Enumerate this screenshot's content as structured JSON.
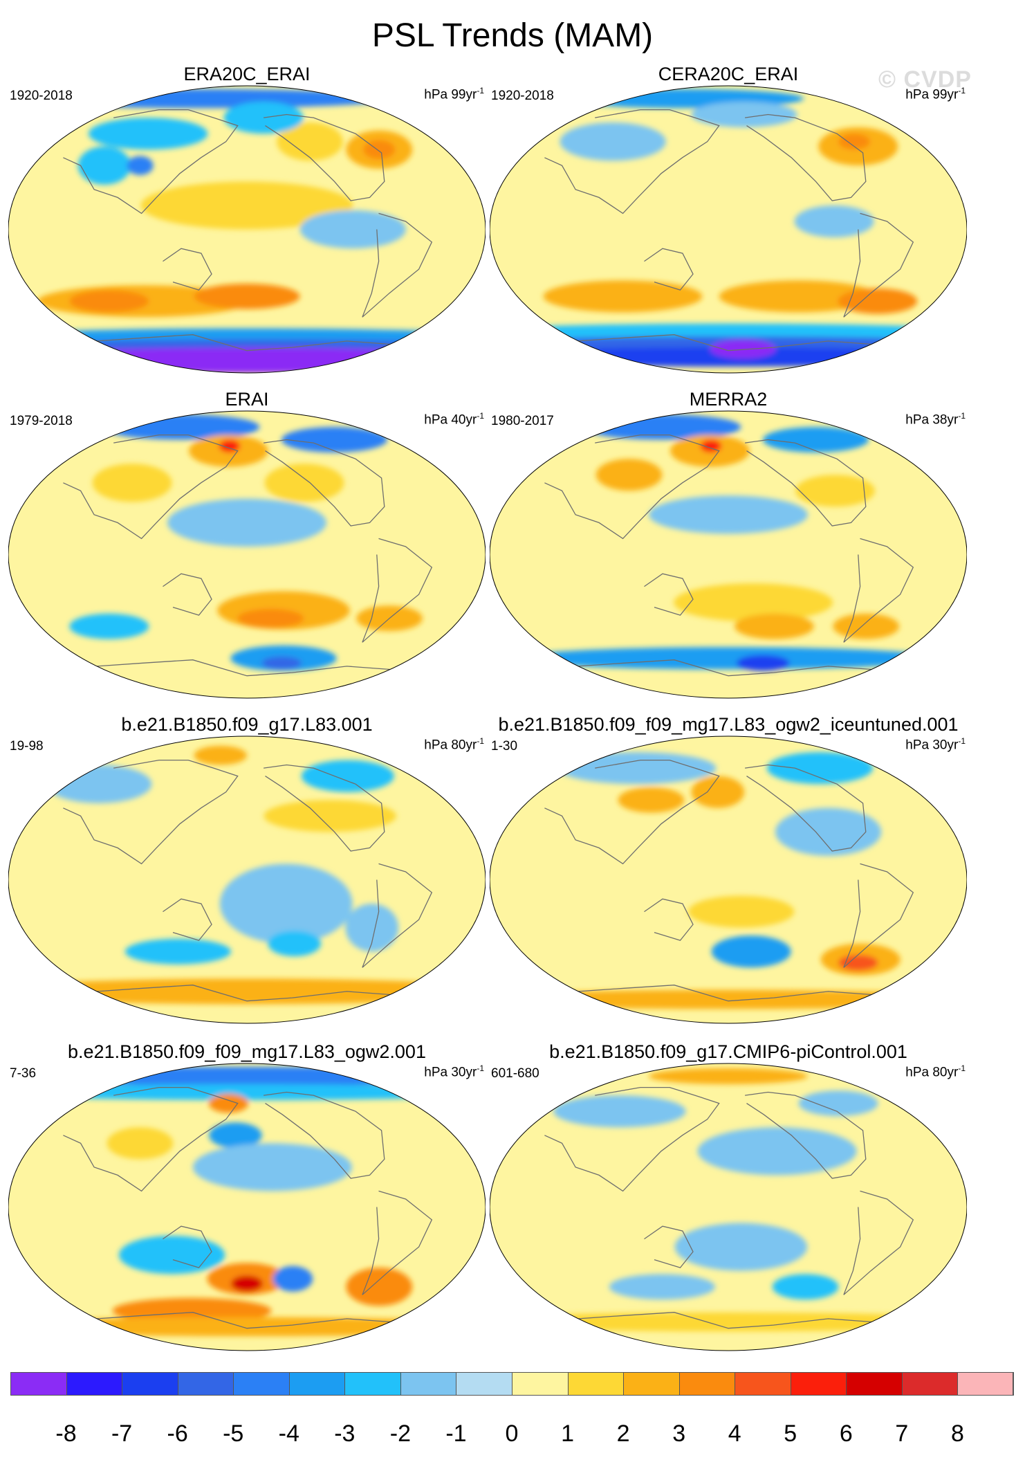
{
  "figure": {
    "title": "PSL Trends (MAM)",
    "watermark": "© CVDP"
  },
  "chart_data": {
    "type": "heatmap",
    "projection": "Robinson-like global map, Pacific-centered",
    "variable": "Sea level pressure trends, March-April-May",
    "panels": [
      {
        "title": "ERA20C_ERAI",
        "period": "1920-2018",
        "units": "hPa 99yr",
        "units_exp": "-1",
        "blobs": [
          {
            "lon": 90,
            "lat": 82,
            "rx": 150,
            "ry": 6,
            "v": -4
          },
          {
            "lon": 80,
            "lat": 60,
            "rx": 45,
            "ry": 10,
            "v": -2
          },
          {
            "lon": 60,
            "lat": 40,
            "rx": 20,
            "ry": 12,
            "v": -2
          },
          {
            "lon": 90,
            "lat": 40,
            "rx": 10,
            "ry": 6,
            "v": -4
          },
          {
            "lon": 240,
            "lat": 55,
            "rx": 25,
            "ry": 12,
            "v": 1
          },
          {
            "lon": 300,
            "lat": 50,
            "rx": 25,
            "ry": 12,
            "v": 2
          },
          {
            "lon": 300,
            "lat": 50,
            "rx": 12,
            "ry": 6,
            "v": 3
          },
          {
            "lon": 200,
            "lat": 70,
            "rx": 30,
            "ry": 10,
            "v": -2
          },
          {
            "lon": 180,
            "lat": 15,
            "rx": 80,
            "ry": 15,
            "v": 1
          },
          {
            "lon": 260,
            "lat": 0,
            "rx": 40,
            "ry": 12,
            "v": -1
          },
          {
            "lon": 90,
            "lat": -45,
            "rx": 80,
            "ry": 10,
            "v": 2
          },
          {
            "lon": 60,
            "lat": -45,
            "rx": 30,
            "ry": 7,
            "v": 3
          },
          {
            "lon": 180,
            "lat": -42,
            "rx": 40,
            "ry": 8,
            "v": 3
          },
          {
            "lon": 180,
            "lat": -68,
            "rx": 200,
            "ry": 6,
            "v": -3
          },
          {
            "lon": 180,
            "lat": -73,
            "rx": 200,
            "ry": 4,
            "v": -5
          },
          {
            "lon": 180,
            "lat": -82,
            "rx": 200,
            "ry": 8,
            "v": -8
          }
        ]
      },
      {
        "title": "CERA20C_ERAI",
        "period": "1920-2018",
        "units": "hPa 99yr",
        "units_exp": "-1",
        "blobs": [
          {
            "lon": 100,
            "lat": 82,
            "rx": 90,
            "ry": 6,
            "v": -3
          },
          {
            "lon": 70,
            "lat": 55,
            "rx": 40,
            "ry": 12,
            "v": -1
          },
          {
            "lon": 300,
            "lat": 52,
            "rx": 30,
            "ry": 12,
            "v": 2
          },
          {
            "lon": 300,
            "lat": 55,
            "rx": 12,
            "ry": 5,
            "v": 3
          },
          {
            "lon": 200,
            "lat": 72,
            "rx": 40,
            "ry": 8,
            "v": -1
          },
          {
            "lon": 260,
            "lat": 5,
            "rx": 30,
            "ry": 10,
            "v": -1
          },
          {
            "lon": 90,
            "lat": -42,
            "rx": 60,
            "ry": 10,
            "v": 2
          },
          {
            "lon": 240,
            "lat": -42,
            "rx": 60,
            "ry": 10,
            "v": 2
          },
          {
            "lon": 310,
            "lat": -45,
            "rx": 30,
            "ry": 8,
            "v": 3
          },
          {
            "lon": 180,
            "lat": -65,
            "rx": 200,
            "ry": 6,
            "v": -2
          },
          {
            "lon": 180,
            "lat": -72,
            "rx": 200,
            "ry": 5,
            "v": -5
          },
          {
            "lon": 180,
            "lat": -80,
            "rx": 200,
            "ry": 6,
            "v": -6
          },
          {
            "lon": 200,
            "lat": -75,
            "rx": 25,
            "ry": 6,
            "v": -8
          }
        ]
      },
      {
        "title": "ERAI",
        "period": "1979-2018",
        "units": "hPa 40yr",
        "units_exp": "-1",
        "blobs": [
          {
            "lon": 70,
            "lat": 80,
            "rx": 60,
            "ry": 8,
            "v": -4
          },
          {
            "lon": 290,
            "lat": 72,
            "rx": 40,
            "ry": 8,
            "v": -4
          },
          {
            "lon": 160,
            "lat": 65,
            "rx": 30,
            "ry": 10,
            "v": 2
          },
          {
            "lon": 160,
            "lat": 68,
            "rx": 8,
            "ry": 4,
            "v": 5
          },
          {
            "lon": 80,
            "lat": 45,
            "rx": 30,
            "ry": 12,
            "v": 1
          },
          {
            "lon": 230,
            "lat": 45,
            "rx": 30,
            "ry": 12,
            "v": 1
          },
          {
            "lon": 180,
            "lat": 20,
            "rx": 60,
            "ry": 15,
            "v": -1
          },
          {
            "lon": 210,
            "lat": -35,
            "rx": 50,
            "ry": 12,
            "v": 2
          },
          {
            "lon": 200,
            "lat": -40,
            "rx": 25,
            "ry": 6,
            "v": 3
          },
          {
            "lon": 300,
            "lat": -40,
            "rx": 25,
            "ry": 8,
            "v": 2
          },
          {
            "lon": 60,
            "lat": -45,
            "rx": 30,
            "ry": 8,
            "v": -2
          },
          {
            "lon": 220,
            "lat": -65,
            "rx": 40,
            "ry": 8,
            "v": -3
          },
          {
            "lon": 220,
            "lat": -68,
            "rx": 15,
            "ry": 4,
            "v": -5
          }
        ]
      },
      {
        "title": "MERRA2",
        "period": "1980-2017",
        "units": "hPa 38yr",
        "units_exp": "-1",
        "blobs": [
          {
            "lon": 70,
            "lat": 80,
            "rx": 60,
            "ry": 8,
            "v": -4
          },
          {
            "lon": 290,
            "lat": 72,
            "rx": 40,
            "ry": 8,
            "v": -3
          },
          {
            "lon": 160,
            "lat": 65,
            "rx": 30,
            "ry": 10,
            "v": 2
          },
          {
            "lon": 160,
            "lat": 68,
            "rx": 8,
            "ry": 4,
            "v": 5
          },
          {
            "lon": 90,
            "lat": 50,
            "rx": 25,
            "ry": 10,
            "v": 2
          },
          {
            "lon": 270,
            "lat": 40,
            "rx": 30,
            "ry": 10,
            "v": 1
          },
          {
            "lon": 180,
            "lat": 25,
            "rx": 60,
            "ry": 12,
            "v": -1
          },
          {
            "lon": 200,
            "lat": -30,
            "rx": 60,
            "ry": 12,
            "v": 1
          },
          {
            "lon": 220,
            "lat": -45,
            "rx": 30,
            "ry": 8,
            "v": 2
          },
          {
            "lon": 300,
            "lat": -45,
            "rx": 25,
            "ry": 8,
            "v": 2
          },
          {
            "lon": 180,
            "lat": -65,
            "rx": 160,
            "ry": 7,
            "v": -3
          },
          {
            "lon": 220,
            "lat": -68,
            "rx": 20,
            "ry": 5,
            "v": -6
          }
        ]
      },
      {
        "title": "b.e21.B1850.f09_g17.L83.001",
        "period": "19-98",
        "units": "hPa 80yr",
        "units_exp": "-1",
        "blobs": [
          {
            "lon": 140,
            "lat": 78,
            "rx": 20,
            "ry": 6,
            "v": 2
          },
          {
            "lon": 290,
            "lat": 65,
            "rx": 35,
            "ry": 10,
            "v": -2
          },
          {
            "lon": 30,
            "lat": 60,
            "rx": 40,
            "ry": 12,
            "v": -1
          },
          {
            "lon": 250,
            "lat": 40,
            "rx": 50,
            "ry": 10,
            "v": 1
          },
          {
            "lon": 210,
            "lat": -15,
            "rx": 50,
            "ry": 25,
            "v": -1
          },
          {
            "lon": 120,
            "lat": -45,
            "rx": 40,
            "ry": 8,
            "v": -2
          },
          {
            "lon": 220,
            "lat": -40,
            "rx": 20,
            "ry": 8,
            "v": -2
          },
          {
            "lon": 280,
            "lat": -30,
            "rx": 20,
            "ry": 15,
            "v": -1
          },
          {
            "lon": 180,
            "lat": -70,
            "rx": 200,
            "ry": 8,
            "v": 2
          }
        ]
      },
      {
        "title": "b.e21.B1850.f09_f09_mg17.L83_ogw2_iceuntuned.001",
        "period": "1-30",
        "units": "hPa 30yr",
        "units_exp": "-1",
        "blobs": [
          {
            "lon": 70,
            "lat": 70,
            "rx": 60,
            "ry": 10,
            "v": -1
          },
          {
            "lon": 290,
            "lat": 70,
            "rx": 40,
            "ry": 10,
            "v": -2
          },
          {
            "lon": 170,
            "lat": 55,
            "rx": 20,
            "ry": 10,
            "v": 2
          },
          {
            "lon": 110,
            "lat": 50,
            "rx": 25,
            "ry": 8,
            "v": 2
          },
          {
            "lon": 260,
            "lat": 30,
            "rx": 40,
            "ry": 15,
            "v": -1
          },
          {
            "lon": 190,
            "lat": -20,
            "rx": 40,
            "ry": 10,
            "v": 1
          },
          {
            "lon": 200,
            "lat": -45,
            "rx": 30,
            "ry": 10,
            "v": -3
          },
          {
            "lon": 300,
            "lat": -50,
            "rx": 30,
            "ry": 10,
            "v": 2
          },
          {
            "lon": 300,
            "lat": -52,
            "rx": 15,
            "ry": 5,
            "v": 4
          },
          {
            "lon": 180,
            "lat": -75,
            "rx": 200,
            "ry": 6,
            "v": 2
          }
        ]
      },
      {
        "title": "b.e21.B1850.f09_f09_mg17.L83_ogw2.001",
        "period": "7-36",
        "units": "hPa 30yr",
        "units_exp": "-1",
        "blobs": [
          {
            "lon": 180,
            "lat": 82,
            "rx": 200,
            "ry": 6,
            "v": -4
          },
          {
            "lon": 180,
            "lat": 72,
            "rx": 200,
            "ry": 5,
            "v": -2
          },
          {
            "lon": 160,
            "lat": 65,
            "rx": 15,
            "ry": 6,
            "v": 3
          },
          {
            "lon": 170,
            "lat": 45,
            "rx": 20,
            "ry": 8,
            "v": -3
          },
          {
            "lon": 90,
            "lat": 40,
            "rx": 25,
            "ry": 10,
            "v": 1
          },
          {
            "lon": 200,
            "lat": 25,
            "rx": 60,
            "ry": 15,
            "v": -1
          },
          {
            "lon": 120,
            "lat": -30,
            "rx": 40,
            "ry": 12,
            "v": -2
          },
          {
            "lon": 180,
            "lat": -45,
            "rx": 30,
            "ry": 10,
            "v": 3
          },
          {
            "lon": 180,
            "lat": -48,
            "rx": 12,
            "ry": 5,
            "v": 6
          },
          {
            "lon": 220,
            "lat": -45,
            "rx": 15,
            "ry": 8,
            "v": -4
          },
          {
            "lon": 300,
            "lat": -50,
            "rx": 25,
            "ry": 12,
            "v": 3
          },
          {
            "lon": 120,
            "lat": -65,
            "rx": 60,
            "ry": 8,
            "v": 3
          },
          {
            "lon": 180,
            "lat": -75,
            "rx": 200,
            "ry": 6,
            "v": 2
          }
        ]
      },
      {
        "title": "b.e21.B1850.f09_g17.CMIP6-piControl.001",
        "period": "601-680",
        "units": "hPa 80yr",
        "units_exp": "-1",
        "blobs": [
          {
            "lon": 180,
            "lat": 82,
            "rx": 60,
            "ry": 5,
            "v": 2
          },
          {
            "lon": 70,
            "lat": 60,
            "rx": 50,
            "ry": 10,
            "v": -1
          },
          {
            "lon": 300,
            "lat": 65,
            "rx": 30,
            "ry": 8,
            "v": -1
          },
          {
            "lon": 220,
            "lat": 35,
            "rx": 60,
            "ry": 15,
            "v": -1
          },
          {
            "lon": 190,
            "lat": -25,
            "rx": 50,
            "ry": 15,
            "v": -1
          },
          {
            "lon": 120,
            "lat": -50,
            "rx": 40,
            "ry": 8,
            "v": -1
          },
          {
            "lon": 250,
            "lat": -50,
            "rx": 25,
            "ry": 8,
            "v": -2
          },
          {
            "lon": 180,
            "lat": -72,
            "rx": 200,
            "ry": 6,
            "v": 1
          }
        ]
      }
    ],
    "colorbar": {
      "labels": [
        "-8",
        "-7",
        "-6",
        "-5",
        "-4",
        "-3",
        "-2",
        "-1",
        "0",
        "1",
        "2",
        "3",
        "4",
        "5",
        "6",
        "7",
        "8"
      ],
      "colors": [
        "#8b2cf5",
        "#2c1afe",
        "#1b3ff0",
        "#3366e6",
        "#2b80f5",
        "#1c9df2",
        "#22c1fa",
        "#7cc4f0",
        "#b4dcf2",
        "#fef5a0",
        "#fdd835",
        "#fbb116",
        "#fa8b0e",
        "#f7551c",
        "#fb1f0b",
        "#d50000",
        "#dc2b2b",
        "#fbb5b8"
      ]
    }
  }
}
